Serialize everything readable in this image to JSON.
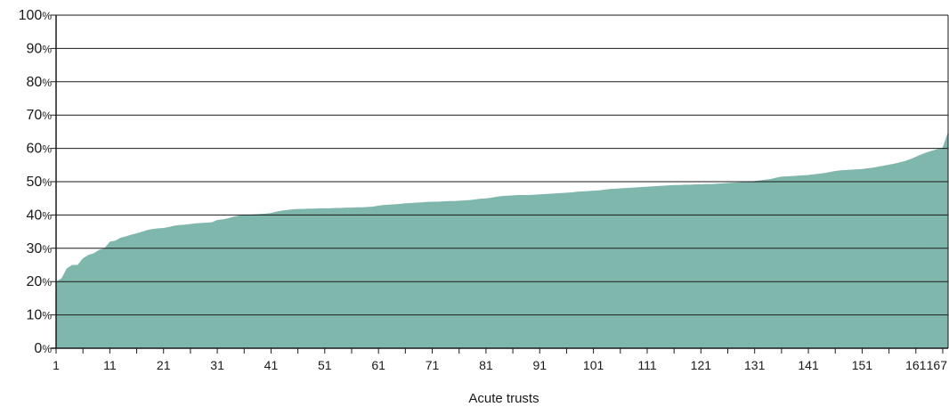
{
  "chart_data": {
    "type": "area",
    "title": "",
    "xlabel": "Acute trusts",
    "ylabel": "",
    "xlim": [
      1,
      167
    ],
    "ylim": [
      0,
      100
    ],
    "y_tick_numbers": [
      "0",
      "10",
      "20",
      "30",
      "40",
      "50",
      "60",
      "70",
      "80",
      "90",
      "100"
    ],
    "y_tick_suffix": "%",
    "x_ticks": [
      "1",
      "11",
      "21",
      "31",
      "41",
      "51",
      "61",
      "71",
      "81",
      "91",
      "101",
      "111",
      "121",
      "131",
      "141",
      "151",
      "161",
      "167"
    ],
    "grid": "horizontal",
    "area_color": "#80b7ad",
    "points": [
      [
        1,
        20
      ],
      [
        2,
        21
      ],
      [
        3,
        24
      ],
      [
        4,
        25
      ],
      [
        5,
        25
      ],
      [
        6,
        27
      ],
      [
        7,
        28
      ],
      [
        8,
        28.5
      ],
      [
        9,
        29.5
      ],
      [
        10,
        30
      ],
      [
        11,
        32
      ],
      [
        12,
        32.3
      ],
      [
        13,
        33.2
      ],
      [
        14,
        33.6
      ],
      [
        15,
        34.1
      ],
      [
        16,
        34.5
      ],
      [
        17,
        35
      ],
      [
        18,
        35.5
      ],
      [
        19,
        35.8
      ],
      [
        20,
        36
      ],
      [
        21,
        36.1
      ],
      [
        22,
        36.4
      ],
      [
        23,
        36.8
      ],
      [
        24,
        37
      ],
      [
        25,
        37.1
      ],
      [
        26,
        37.3
      ],
      [
        27,
        37.5
      ],
      [
        28,
        37.6
      ],
      [
        29,
        37.7
      ],
      [
        30,
        37.8
      ],
      [
        31,
        38.5
      ],
      [
        32,
        38.7
      ],
      [
        33,
        39
      ],
      [
        34,
        39.5
      ],
      [
        35,
        39.8
      ],
      [
        36,
        40
      ],
      [
        37,
        40.1
      ],
      [
        38,
        40.2
      ],
      [
        39,
        40.3
      ],
      [
        40,
        40.4
      ],
      [
        41,
        40.6
      ],
      [
        42,
        41
      ],
      [
        43,
        41.3
      ],
      [
        44,
        41.5
      ],
      [
        45,
        41.7
      ],
      [
        46,
        41.8
      ],
      [
        47,
        41.8
      ],
      [
        48,
        41.9
      ],
      [
        49,
        41.9
      ],
      [
        50,
        42
      ],
      [
        51,
        42
      ],
      [
        52,
        42
      ],
      [
        53,
        42.1
      ],
      [
        54,
        42.1
      ],
      [
        55,
        42.2
      ],
      [
        56,
        42.2
      ],
      [
        57,
        42.3
      ],
      [
        58,
        42.3
      ],
      [
        59,
        42.4
      ],
      [
        60,
        42.5
      ],
      [
        61,
        42.8
      ],
      [
        62,
        43
      ],
      [
        63,
        43.1
      ],
      [
        64,
        43.2
      ],
      [
        65,
        43.3
      ],
      [
        66,
        43.5
      ],
      [
        67,
        43.6
      ],
      [
        68,
        43.7
      ],
      [
        69,
        43.8
      ],
      [
        70,
        43.9
      ],
      [
        71,
        44
      ],
      [
        72,
        44
      ],
      [
        73,
        44.1
      ],
      [
        74,
        44.2
      ],
      [
        75,
        44.2
      ],
      [
        76,
        44.3
      ],
      [
        77,
        44.4
      ],
      [
        78,
        44.5
      ],
      [
        79,
        44.7
      ],
      [
        80,
        44.9
      ],
      [
        81,
        45
      ],
      [
        82,
        45.2
      ],
      [
        83,
        45.5
      ],
      [
        84,
        45.7
      ],
      [
        85,
        45.8
      ],
      [
        86,
        45.9
      ],
      [
        87,
        46
      ],
      [
        88,
        46
      ],
      [
        89,
        46
      ],
      [
        90,
        46.1
      ],
      [
        91,
        46.2
      ],
      [
        92,
        46.3
      ],
      [
        93,
        46.4
      ],
      [
        94,
        46.5
      ],
      [
        95,
        46.6
      ],
      [
        96,
        46.7
      ],
      [
        97,
        46.8
      ],
      [
        98,
        47
      ],
      [
        99,
        47.1
      ],
      [
        100,
        47.2
      ],
      [
        101,
        47.3
      ],
      [
        102,
        47.4
      ],
      [
        103,
        47.6
      ],
      [
        104,
        47.8
      ],
      [
        105,
        47.9
      ],
      [
        106,
        48
      ],
      [
        107,
        48.1
      ],
      [
        108,
        48.2
      ],
      [
        109,
        48.3
      ],
      [
        110,
        48.4
      ],
      [
        111,
        48.5
      ],
      [
        112,
        48.6
      ],
      [
        113,
        48.7
      ],
      [
        114,
        48.8
      ],
      [
        115,
        48.9
      ],
      [
        116,
        49
      ],
      [
        117,
        49
      ],
      [
        118,
        49.1
      ],
      [
        119,
        49.1
      ],
      [
        120,
        49.2
      ],
      [
        121,
        49.2
      ],
      [
        122,
        49.3
      ],
      [
        123,
        49.3
      ],
      [
        124,
        49.4
      ],
      [
        125,
        49.5
      ],
      [
        126,
        49.6
      ],
      [
        127,
        49.7
      ],
      [
        128,
        49.8
      ],
      [
        129,
        49.9
      ],
      [
        130,
        50
      ],
      [
        131,
        50.2
      ],
      [
        132,
        50.4
      ],
      [
        133,
        50.6
      ],
      [
        134,
        50.8
      ],
      [
        135,
        51.2
      ],
      [
        136,
        51.5
      ],
      [
        137,
        51.6
      ],
      [
        138,
        51.7
      ],
      [
        139,
        51.8
      ],
      [
        140,
        51.9
      ],
      [
        141,
        52
      ],
      [
        142,
        52.2
      ],
      [
        143,
        52.4
      ],
      [
        144,
        52.6
      ],
      [
        145,
        52.9
      ],
      [
        146,
        53.2
      ],
      [
        147,
        53.4
      ],
      [
        148,
        53.5
      ],
      [
        149,
        53.6
      ],
      [
        150,
        53.7
      ],
      [
        151,
        53.8
      ],
      [
        152,
        54
      ],
      [
        153,
        54.2
      ],
      [
        154,
        54.5
      ],
      [
        155,
        54.8
      ],
      [
        156,
        55.1
      ],
      [
        157,
        55.4
      ],
      [
        158,
        55.8
      ],
      [
        159,
        56.2
      ],
      [
        160,
        56.8
      ],
      [
        161,
        57.5
      ],
      [
        162,
        58.2
      ],
      [
        163,
        58.8
      ],
      [
        164,
        59.3
      ],
      [
        165,
        59.8
      ],
      [
        166,
        60.3
      ],
      [
        167,
        65
      ]
    ]
  }
}
